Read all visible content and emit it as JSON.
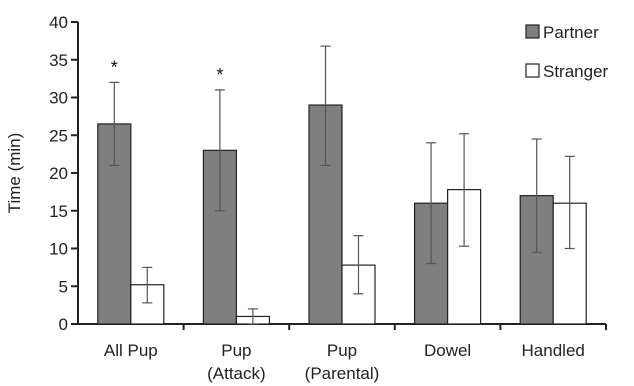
{
  "chart_data": {
    "type": "bar",
    "title": "",
    "xlabel": "",
    "ylabel": "Time (min)",
    "ylim": [
      0,
      40
    ],
    "yticks": [
      0,
      5,
      10,
      15,
      20,
      25,
      30,
      35,
      40
    ],
    "grid": false,
    "legend_position": "top-right",
    "categories": [
      [
        "All Pup"
      ],
      [
        "Pup",
        "(Attack)"
      ],
      [
        "Pup",
        "(Parental)"
      ],
      [
        "Dowel"
      ],
      [
        "Handled"
      ]
    ],
    "series": [
      {
        "name": "Partner",
        "color": "#7f7f7f",
        "values": [
          26.5,
          23,
          29,
          16,
          17
        ],
        "error_low": [
          21,
          15,
          21,
          8,
          9.5
        ],
        "error_high": [
          32,
          31,
          36.8,
          24,
          24.5
        ]
      },
      {
        "name": "Stranger",
        "color": "#ffffff",
        "values": [
          5.2,
          1,
          7.8,
          17.8,
          16
        ],
        "error_low": [
          2.8,
          0,
          4,
          10.3,
          10
        ],
        "error_high": [
          7.5,
          2,
          11.7,
          25.2,
          22.2
        ]
      }
    ],
    "annotations": [
      {
        "category_index": 0,
        "text": "*",
        "y": 34
      },
      {
        "category_index": 1,
        "text": "*",
        "y": 33
      }
    ]
  }
}
